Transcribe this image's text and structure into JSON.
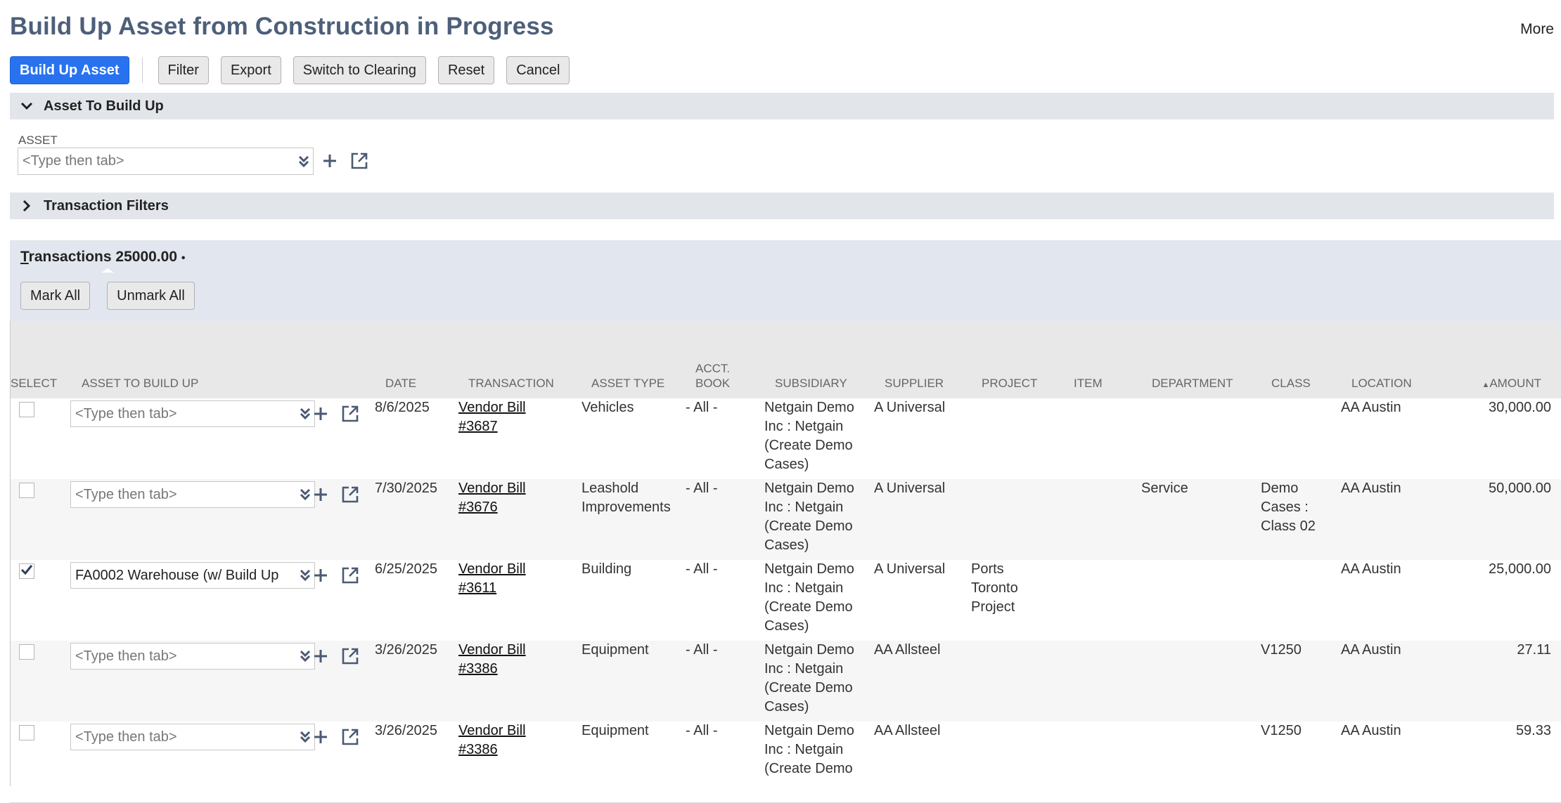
{
  "page": {
    "title": "Build Up Asset from Construction in Progress",
    "more": "More"
  },
  "toolbar": {
    "build_up_asset": "Build Up Asset",
    "filter": "Filter",
    "export": "Export",
    "switch_to_clearing": "Switch to Clearing",
    "reset": "Reset",
    "cancel": "Cancel"
  },
  "asset_section": {
    "title": "Asset To Build Up",
    "field_label": "ASSET",
    "placeholder": "<Type then tab>"
  },
  "filters_section": {
    "title": "Transaction Filters"
  },
  "transactions": {
    "title_first": "T",
    "title_rest": "ransactions",
    "total": "25000.00",
    "bullet": "•",
    "mark_all": "Mark All",
    "unmark_all": "Unmark All"
  },
  "columns": {
    "select": "SELECT",
    "asset_to_build_up": "ASSET TO BUILD UP",
    "date": "DATE",
    "transaction": "TRANSACTION",
    "asset_type": "ASSET TYPE",
    "acct_book_1": "ACCT.",
    "acct_book_2": "BOOK",
    "subsidiary": "SUBSIDIARY",
    "supplier": "SUPPLIER",
    "project": "PROJECT",
    "item": "ITEM",
    "department": "DEPARTMENT",
    "class": "CLASS",
    "location": "LOCATION",
    "amount": "AMOUNT",
    "sort_indicator": "▲"
  },
  "rows": [
    {
      "checked": false,
      "asset": "<Type then tab>",
      "date": "8/6/2025",
      "transaction": [
        "Vendor Bill",
        "#3687"
      ],
      "asset_type": [
        "Vehicles"
      ],
      "acct_book": "- All -",
      "subsidiary": [
        "Netgain Demo",
        "Inc : Netgain",
        "(Create Demo",
        "Cases)"
      ],
      "supplier": "A Universal",
      "project": [],
      "item": "",
      "department": "",
      "class": [],
      "location": "AA Austin",
      "amount": "30,000.00"
    },
    {
      "checked": false,
      "asset": "<Type then tab>",
      "date": "7/30/2025",
      "transaction": [
        "Vendor Bill",
        "#3676"
      ],
      "asset_type": [
        "Leashold",
        "Improvements"
      ],
      "acct_book": "- All -",
      "subsidiary": [
        "Netgain Demo",
        "Inc : Netgain",
        "(Create Demo",
        "Cases)"
      ],
      "supplier": "A Universal",
      "project": [],
      "item": "",
      "department": "Service",
      "class": [
        "Demo",
        "Cases :",
        "Class 02"
      ],
      "location": "AA Austin",
      "amount": "50,000.00"
    },
    {
      "checked": true,
      "asset": "FA0002 Warehouse (w/ Build Up",
      "date": "6/25/2025",
      "transaction": [
        "Vendor Bill",
        "#3611"
      ],
      "asset_type": [
        "Building"
      ],
      "acct_book": "- All -",
      "subsidiary": [
        "Netgain Demo",
        "Inc : Netgain",
        "(Create Demo",
        "Cases)"
      ],
      "supplier": "A Universal",
      "project": [
        "Ports",
        "Toronto",
        "Project"
      ],
      "item": "",
      "department": "",
      "class": [],
      "location": "AA Austin",
      "amount": "25,000.00"
    },
    {
      "checked": false,
      "asset": "<Type then tab>",
      "date": "3/26/2025",
      "transaction": [
        "Vendor Bill",
        "#3386"
      ],
      "asset_type": [
        "Equipment"
      ],
      "acct_book": "- All -",
      "subsidiary": [
        "Netgain Demo",
        "Inc : Netgain",
        "(Create Demo",
        "Cases)"
      ],
      "supplier": "AA Allsteel",
      "project": [],
      "item": "",
      "department": "",
      "class": [
        "V1250"
      ],
      "location": "AA Austin",
      "amount": "27.11"
    },
    {
      "checked": false,
      "asset": "<Type then tab>",
      "date": "3/26/2025",
      "transaction": [
        "Vendor Bill",
        "#3386"
      ],
      "asset_type": [
        "Equipment"
      ],
      "acct_book": "- All -",
      "subsidiary": [
        "Netgain Demo",
        "Inc : Netgain",
        "(Create Demo"
      ],
      "supplier": "AA Allsteel",
      "project": [],
      "item": "",
      "department": "",
      "class": [
        "V1250"
      ],
      "location": "AA Austin",
      "amount": "59.33"
    }
  ],
  "icons": {
    "collapse": "chevron-down-icon",
    "expand": "chevron-right-icon",
    "dropdown": "double-chevron-down-icon",
    "add": "plus-icon",
    "open": "external-link-icon",
    "check": "checkmark-icon"
  },
  "colors": {
    "primary": "#2872f0",
    "title": "#4d5f79",
    "section_bar": "#e2e5ea",
    "icon": "#4a5a72"
  }
}
